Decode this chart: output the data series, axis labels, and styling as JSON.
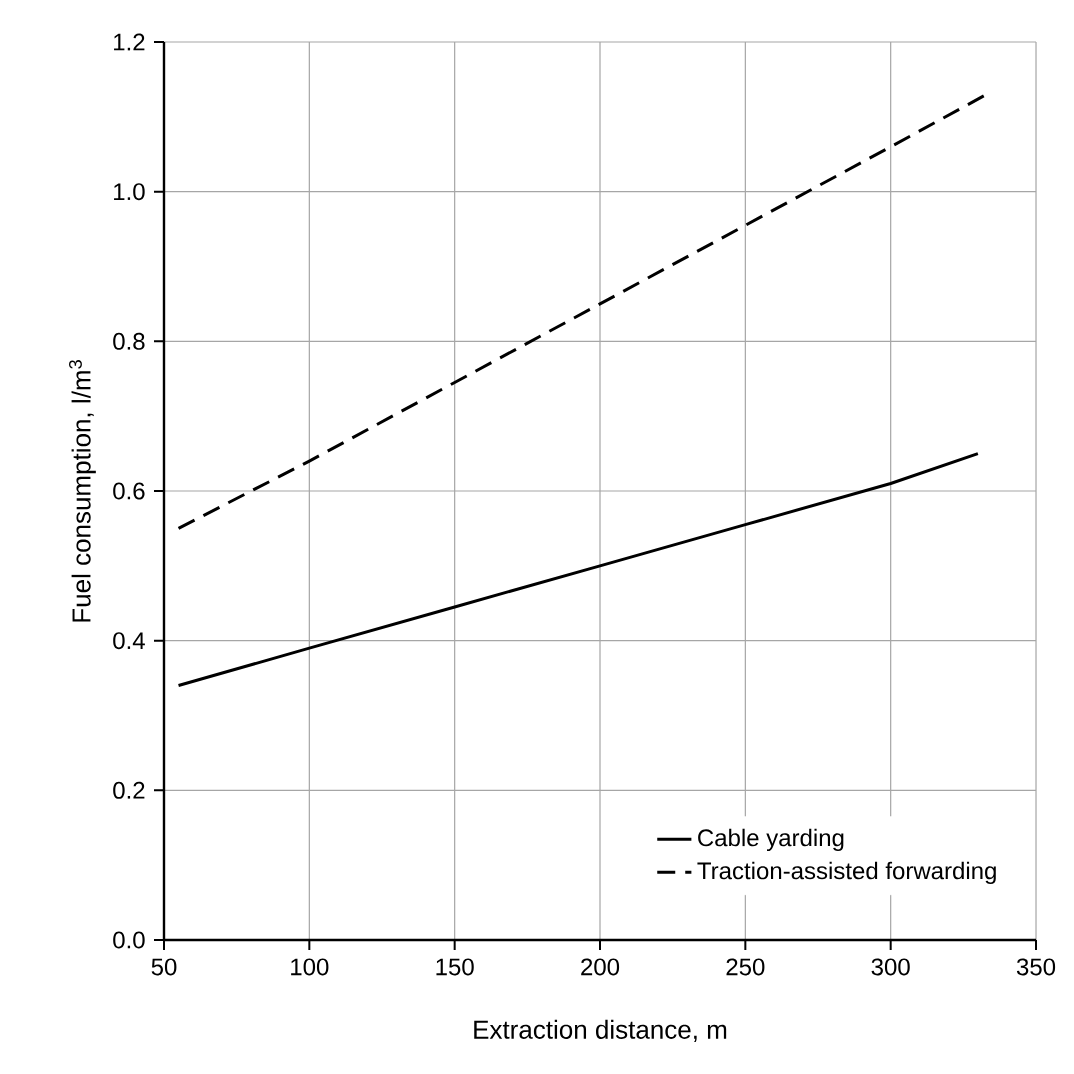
{
  "chart_data": {
    "type": "line",
    "xlabel": "Extraction distance, m",
    "ylabel": "Fuel consumption, l/m$^{3}$",
    "series": [
      {
        "name": "Cable yarding",
        "color": "#000000",
        "line_style": "solid",
        "x": [
          55,
          100,
          150,
          200,
          250,
          300,
          330
        ],
        "values": [
          0.34,
          0.39,
          0.445,
          0.5,
          0.555,
          0.61,
          0.65
        ]
      },
      {
        "name": "Traction-assisted forwarding",
        "color": "#000000",
        "line_style": "dashed",
        "x": [
          55,
          100,
          150,
          200,
          250,
          300,
          333
        ],
        "values": [
          0.55,
          0.64,
          0.745,
          0.85,
          0.955,
          1.06,
          1.13
        ]
      }
    ],
    "xlim": [
      50,
      350
    ],
    "ylim": [
      0,
      1.2
    ],
    "xticks": [
      50,
      100,
      150,
      200,
      250,
      300,
      350
    ],
    "yticks": [
      {
        "value": 0,
        "label": "0.0"
      },
      0.2,
      0.4,
      0.6,
      0.8,
      {
        "value": 1.0,
        "label": "1.0"
      },
      1.2
    ],
    "grid": true,
    "legend": "bottom right"
  }
}
